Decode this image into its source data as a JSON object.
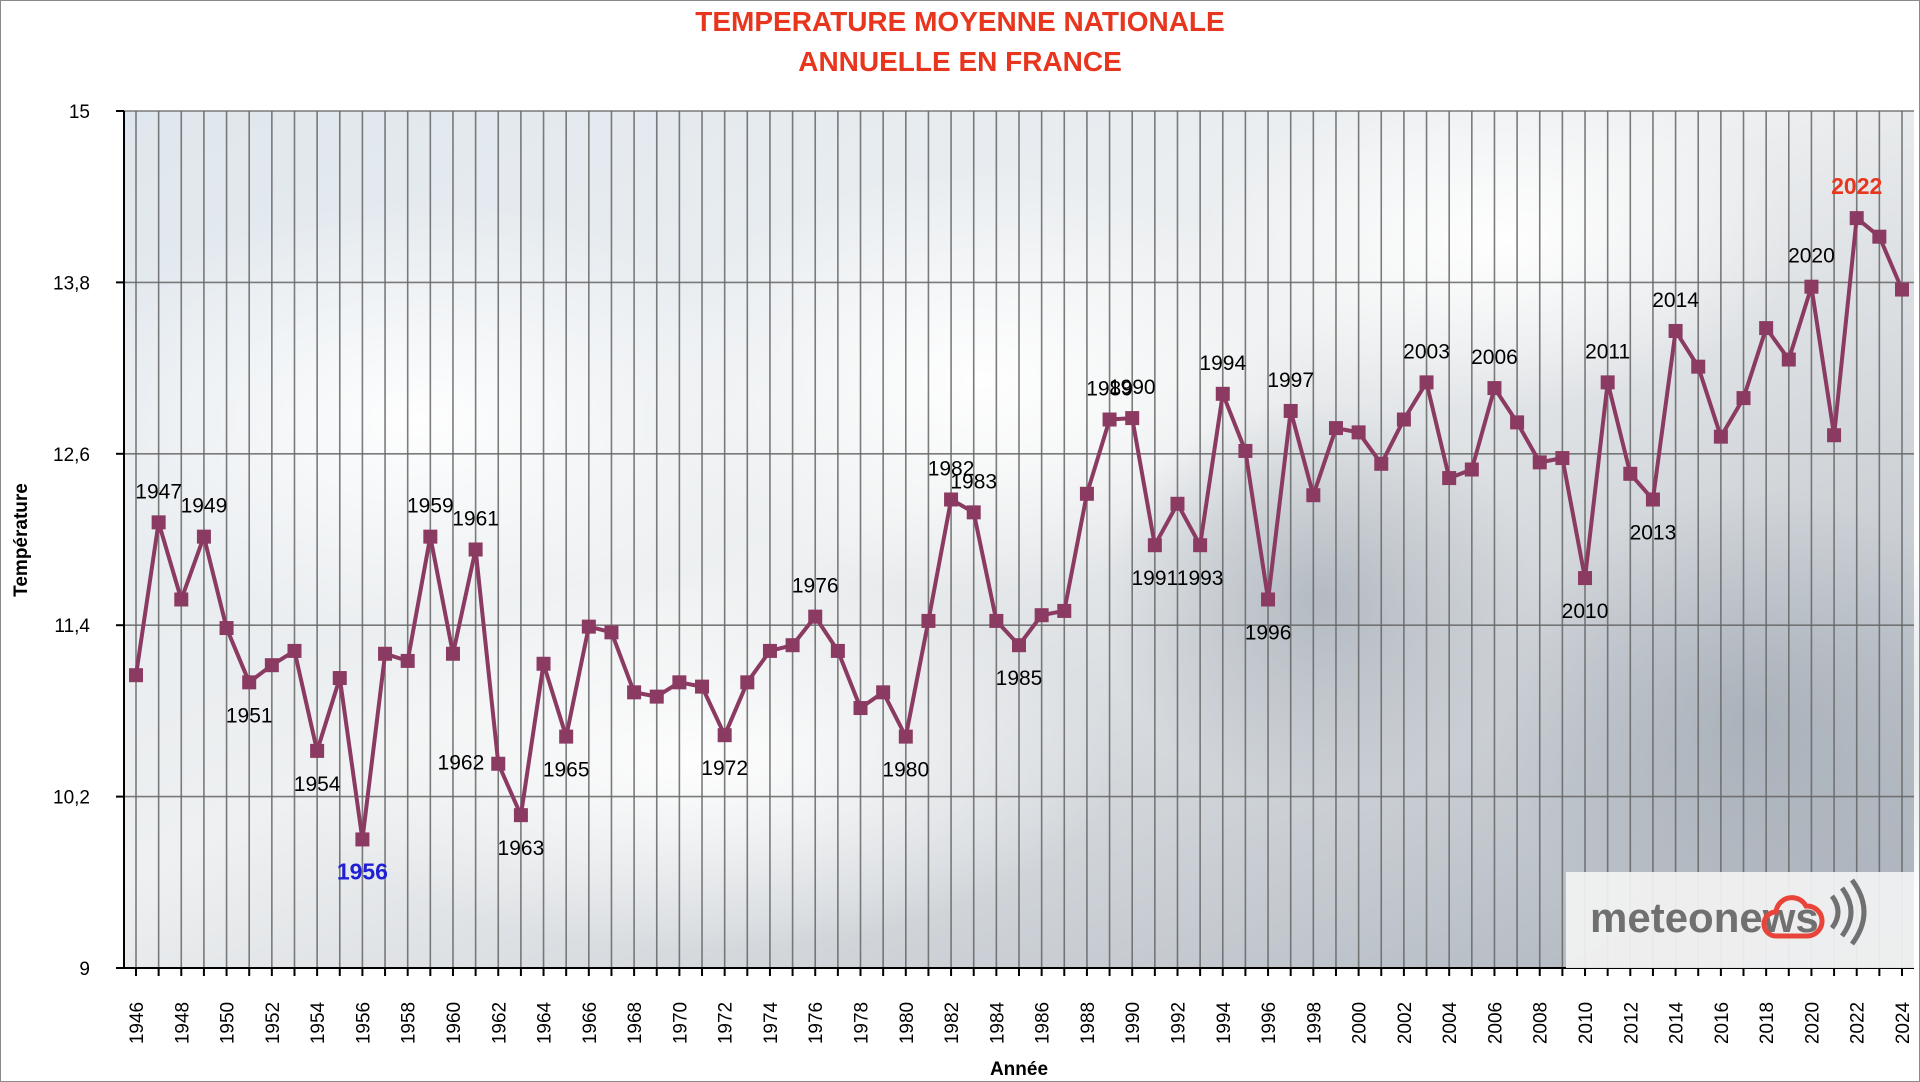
{
  "chart_data": {
    "type": "line",
    "title_line1": "TEMPERATURE MOYENNE NATIONALE",
    "title_line2": "ANNUELLE EN FRANCE",
    "xlabel": "Année",
    "ylabel": "Température",
    "ylim": [
      9,
      15
    ],
    "yticks": [
      "9",
      "10,2",
      "11,4",
      "12,6",
      "13,8",
      "15"
    ],
    "ytick_values": [
      9,
      10.2,
      11.4,
      12.6,
      13.8,
      15
    ],
    "xtick_labels": [
      "1946",
      "1948",
      "1950",
      "1952",
      "1954",
      "1956",
      "1958",
      "1960",
      "1962",
      "1964",
      "1966",
      "1968",
      "1970",
      "1972",
      "1974",
      "1976",
      "1978",
      "1980",
      "1982",
      "1984",
      "1986",
      "1988",
      "1990",
      "1992",
      "1994",
      "1996",
      "1998",
      "2000",
      "2002",
      "2004",
      "2006",
      "2008",
      "2010",
      "2012",
      "2014",
      "2016",
      "2018",
      "2020",
      "2022",
      "2024"
    ],
    "grid": "on",
    "series_color": "#8b3a62",
    "x": [
      1946,
      1947,
      1948,
      1949,
      1950,
      1951,
      1952,
      1953,
      1954,
      1955,
      1956,
      1957,
      1958,
      1959,
      1960,
      1961,
      1962,
      1963,
      1964,
      1965,
      1966,
      1967,
      1968,
      1969,
      1970,
      1971,
      1972,
      1973,
      1974,
      1975,
      1976,
      1977,
      1978,
      1979,
      1980,
      1981,
      1982,
      1983,
      1984,
      1985,
      1986,
      1987,
      1988,
      1989,
      1990,
      1991,
      1992,
      1993,
      1994,
      1995,
      1996,
      1997,
      1998,
      1999,
      2000,
      2001,
      2002,
      2003,
      2004,
      2005,
      2006,
      2007,
      2008,
      2009,
      2010,
      2011,
      2012,
      2013,
      2014,
      2015,
      2016,
      2017,
      2018,
      2019,
      2020,
      2021,
      2022,
      2023,
      2024
    ],
    "values": [
      11.05,
      12.12,
      11.58,
      12.02,
      11.38,
      11.0,
      11.12,
      11.22,
      10.52,
      11.03,
      9.9,
      11.2,
      11.15,
      12.02,
      11.2,
      11.93,
      10.43,
      10.07,
      11.13,
      10.62,
      11.39,
      11.35,
      10.93,
      10.9,
      11.0,
      10.97,
      10.63,
      11.0,
      11.22,
      11.26,
      11.46,
      11.22,
      10.82,
      10.93,
      10.62,
      11.43,
      12.28,
      12.19,
      11.43,
      11.26,
      11.47,
      11.5,
      12.32,
      12.84,
      12.85,
      11.96,
      12.25,
      11.96,
      13.02,
      12.62,
      11.58,
      12.9,
      12.31,
      12.78,
      12.75,
      12.53,
      12.84,
      13.1,
      12.43,
      12.49,
      13.06,
      12.82,
      12.54,
      12.57,
      11.73,
      13.1,
      12.46,
      12.28,
      13.46,
      13.21,
      12.72,
      12.99,
      13.48,
      13.26,
      13.77,
      12.73,
      14.25,
      14.12,
      13.75
    ],
    "annotations": [
      {
        "label": "1947",
        "year": 1947,
        "pos": "above"
      },
      {
        "label": "1949",
        "year": 1949,
        "pos": "above"
      },
      {
        "label": "1951",
        "year": 1951,
        "pos": "below"
      },
      {
        "label": "1954",
        "year": 1954,
        "pos": "below"
      },
      {
        "label": "1956",
        "year": 1956,
        "pos": "below",
        "highlight": "blue"
      },
      {
        "label": "1959",
        "year": 1959,
        "pos": "above"
      },
      {
        "label": "1961",
        "year": 1961,
        "pos": "above"
      },
      {
        "label": "1962",
        "year": 1962,
        "pos": "left"
      },
      {
        "label": "1963",
        "year": 1963,
        "pos": "below"
      },
      {
        "label": "1965",
        "year": 1965,
        "pos": "below"
      },
      {
        "label": "1972",
        "year": 1972,
        "pos": "below"
      },
      {
        "label": "1976",
        "year": 1976,
        "pos": "above"
      },
      {
        "label": "1980",
        "year": 1980,
        "pos": "below"
      },
      {
        "label": "1982",
        "year": 1982,
        "pos": "above"
      },
      {
        "label": "1983",
        "year": 1983,
        "pos": "above"
      },
      {
        "label": "1985",
        "year": 1985,
        "pos": "below"
      },
      {
        "label": "1989",
        "year": 1989,
        "pos": "above"
      },
      {
        "label": "1990",
        "year": 1990,
        "pos": "above"
      },
      {
        "label": "1991",
        "year": 1991,
        "pos": "below"
      },
      {
        "label": "1993",
        "year": 1993,
        "pos": "below"
      },
      {
        "label": "1994",
        "year": 1994,
        "pos": "above"
      },
      {
        "label": "1996",
        "year": 1996,
        "pos": "below"
      },
      {
        "label": "1997",
        "year": 1997,
        "pos": "above"
      },
      {
        "label": "2003",
        "year": 2003,
        "pos": "above"
      },
      {
        "label": "2006",
        "year": 2006,
        "pos": "above"
      },
      {
        "label": "2010",
        "year": 2010,
        "pos": "below"
      },
      {
        "label": "2011",
        "year": 2011,
        "pos": "above"
      },
      {
        "label": "2013",
        "year": 2013,
        "pos": "below"
      },
      {
        "label": "2014",
        "year": 2014,
        "pos": "above"
      },
      {
        "label": "2020",
        "year": 2020,
        "pos": "above"
      },
      {
        "label": "2022",
        "year": 2022,
        "pos": "above",
        "highlight": "red"
      }
    ]
  },
  "logo": {
    "text": "meteonews",
    "text_color": "#707070",
    "cloud_color": "#e8443a"
  }
}
